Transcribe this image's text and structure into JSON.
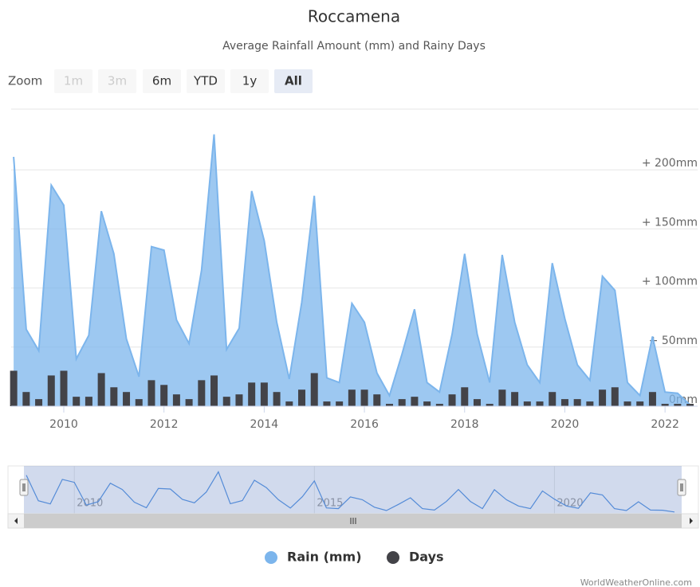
{
  "chart_data": {
    "type": "area",
    "title": "Roccamena",
    "subtitle": "Average Rainfall Amount (mm) and Rainy Days",
    "zoom_label": "Zoom",
    "zoom_buttons": [
      "1m",
      "3m",
      "6m",
      "YTD",
      "1y",
      "All"
    ],
    "credits": "WorldWeatherOnline.com",
    "x": [
      2009,
      2009.25,
      2009.5,
      2009.75,
      2010,
      2010.25,
      2010.5,
      2010.75,
      2011,
      2011.25,
      2011.5,
      2011.75,
      2012,
      2012.25,
      2012.5,
      2012.75,
      2013,
      2013.25,
      2013.5,
      2013.75,
      2014,
      2014.25,
      2014.5,
      2014.75,
      2015,
      2015.25,
      2015.5,
      2015.75,
      2016,
      2016.25,
      2016.5,
      2016.75,
      2017,
      2017.25,
      2017.5,
      2017.75,
      2018,
      2018.25,
      2018.5,
      2018.75,
      2019,
      2019.25,
      2019.5,
      2019.75,
      2020,
      2020.25,
      2020.5,
      2020.75,
      2021,
      2021.25,
      2021.5,
      2021.75,
      2022,
      2022.25,
      2022.5
    ],
    "series": [
      {
        "name": "Rain (mm)",
        "type": "area",
        "color": "#7cb5ec",
        "values": [
          211,
          65,
          47,
          187,
          170,
          40,
          60,
          165,
          129,
          57,
          25,
          135,
          132,
          73,
          53,
          115,
          230,
          48,
          66,
          182,
          140,
          71,
          23,
          88,
          178,
          24,
          20,
          87,
          71,
          28,
          9,
          44,
          82,
          20,
          12,
          61,
          129,
          61,
          20,
          128,
          71,
          35,
          20,
          121,
          74,
          35,
          22,
          110,
          98,
          20,
          9,
          59,
          12,
          11,
          1
        ]
      },
      {
        "name": "Days",
        "type": "column",
        "color": "#434348",
        "axis": "y2",
        "values": [
          15,
          6,
          3,
          13,
          15,
          4,
          4,
          14,
          8,
          6,
          3,
          11,
          9,
          5,
          3,
          11,
          13,
          4,
          5,
          10,
          10,
          6,
          2,
          7,
          14,
          2,
          2,
          7,
          7,
          5,
          1,
          3,
          4,
          2,
          1,
          5,
          8,
          3,
          1,
          7,
          6,
          2,
          2,
          6,
          3,
          3,
          2,
          7,
          8,
          2,
          2,
          6,
          1,
          1,
          1
        ]
      }
    ],
    "xlim": [
      2008.95,
      2022.65
    ],
    "xticks": [
      2010,
      2012,
      2014,
      2016,
      2018,
      2020,
      2022
    ],
    "ylim": [
      0,
      250
    ],
    "yticks": [
      {
        "value": 0,
        "label": "0mm"
      },
      {
        "value": 50,
        "label": "+ 50mm"
      },
      {
        "value": 100,
        "label": "+ 100mm"
      },
      {
        "value": 150,
        "label": "+ 150mm"
      },
      {
        "value": 200,
        "label": "+ 200mm"
      }
    ],
    "y2lim": [
      0,
      125
    ],
    "navigator_xticks": [
      2010,
      2015,
      2020
    ],
    "grid": true,
    "legend": "bottom"
  }
}
